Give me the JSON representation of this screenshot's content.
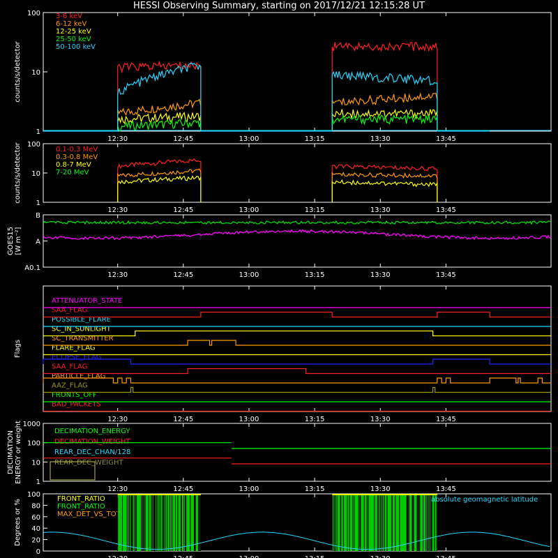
{
  "title": "HESSI Observing Summary, starting on 2017/12/21 12:15:28 UT",
  "colors": {
    "background": "#000000",
    "axes": "#ffffff"
  },
  "chart_data": [
    {
      "id": "hxr",
      "type": "line",
      "ylabel": "counts/s/detector",
      "yscale": "log",
      "ylim": [
        1,
        100
      ],
      "ytick_labels": [
        "1",
        "10",
        "100"
      ],
      "xlim_min": [
        -2,
        100
      ],
      "xtick_labels": [
        "12:30",
        "12:45",
        "13:00",
        "13:15",
        "13:30",
        "13:45"
      ],
      "series": [
        {
          "name": "3-6 keV",
          "color": "#ff2020",
          "segments": [
            {
              "x": [
                -2,
                0
              ],
              "y": [
                1,
                1
              ]
            },
            {
              "x": [
                15,
                34
              ],
              "y": [
                12,
                13
              ]
            },
            {
              "x": [
                64,
                88
              ],
              "y": [
                27,
                27
              ]
            }
          ]
        },
        {
          "name": "6-12 keV",
          "color": "#ff9a00",
          "segments": [
            {
              "x": [
                15,
                34
              ],
              "y": [
                2,
                3
              ]
            },
            {
              "x": [
                64,
                88
              ],
              "y": [
                3,
                4
              ]
            }
          ]
        },
        {
          "name": "12-25 keV",
          "color": "#ffff00",
          "segments": [
            {
              "x": [
                15,
                34
              ],
              "y": [
                1.6,
                1.8
              ]
            },
            {
              "x": [
                64,
                88
              ],
              "y": [
                2,
                2
              ]
            }
          ]
        },
        {
          "name": "25-50 keV",
          "color": "#00ff00",
          "segments": [
            {
              "x": [
                15,
                34
              ],
              "y": [
                1.2,
                1.4
              ]
            },
            {
              "x": [
                64,
                88
              ],
              "y": [
                1.6,
                1.6
              ]
            }
          ]
        },
        {
          "name": "50-100 keV",
          "color": "#20d8ff",
          "segments": [
            {
              "x": [
                -2,
                15
              ],
              "y": [
                1,
                1
              ]
            },
            {
              "x": [
                15,
                34
              ],
              "y": [
                4.5,
                13
              ]
            },
            {
              "x": [
                34,
                64
              ],
              "y": [
                1,
                1
              ]
            },
            {
              "x": [
                64,
                88
              ],
              "y": [
                9,
                7
              ]
            },
            {
              "x": [
                88,
                100
              ],
              "y": [
                1,
                1
              ]
            }
          ]
        }
      ]
    },
    {
      "id": "gamma",
      "type": "line",
      "ylabel": "counts/s/detector",
      "yscale": "log",
      "ylim": [
        1,
        100
      ],
      "ytick_labels": [
        "1",
        "10",
        "100"
      ],
      "xtick_labels": [
        "12:30",
        "12:45",
        "13:00",
        "13:15",
        "13:30",
        "13:45"
      ],
      "series": [
        {
          "name": "0.1-0.3 MeV",
          "color": "#ff2020",
          "segments": [
            {
              "x": [
                15,
                34
              ],
              "y": [
                17,
                28
              ]
            },
            {
              "x": [
                64,
                88
              ],
              "y": [
                17,
                14
              ]
            }
          ]
        },
        {
          "name": "0.3-0.8 MeV",
          "color": "#ff9a00",
          "segments": [
            {
              "x": [
                15,
                34
              ],
              "y": [
                8,
                12
              ]
            },
            {
              "x": [
                64,
                88
              ],
              "y": [
                9,
                8
              ]
            }
          ]
        },
        {
          "name": "0.8-7 MeV",
          "color": "#ffff00",
          "segments": [
            {
              "x": [
                15,
                34
              ],
              "y": [
                5,
                7
              ]
            },
            {
              "x": [
                64,
                88
              ],
              "y": [
                5,
                4
              ]
            }
          ]
        },
        {
          "name": "7-20 MeV",
          "color": "#00ff00",
          "segments": []
        }
      ]
    },
    {
      "id": "goes",
      "type": "line",
      "ylabel": "GOES15",
      "ylabel2": "[W m⁻²]",
      "ytick_labels": [
        "A0.1",
        "A",
        "B"
      ],
      "xtick_labels": [
        "12:30",
        "12:45",
        "13:00",
        "13:15",
        "13:30",
        "13:45"
      ],
      "series": [
        {
          "name": "",
          "color": "#00dd00",
          "level": 0.96
        },
        {
          "name": "",
          "color": "#ff00ff",
          "level": 0.62
        }
      ]
    },
    {
      "id": "flags",
      "type": "line",
      "ylabel": "Flags",
      "xtick_labels": [
        "12:30",
        "12:45",
        "13:00",
        "13:15",
        "13:30",
        "13:45"
      ],
      "series": [
        {
          "name": "ATTENUATOR_STATE",
          "color": "#ff00ff",
          "on": []
        },
        {
          "name": "SAA_FLAG",
          "color": "#ff2020",
          "on": [
            [
              34,
              64
            ],
            [
              88,
              100
            ]
          ]
        },
        {
          "name": "POSSIBLE_FLARE",
          "color": "#20d8ff",
          "on": []
        },
        {
          "name": "SC_IN_SUNLIGHT",
          "color": "#ffff00",
          "on": [
            [
              19,
              87
            ]
          ]
        },
        {
          "name": "SC_TRANSMITTER",
          "color": "#ff9a00",
          "on": [
            [
              31,
              36
            ],
            [
              36.5,
              42
            ]
          ]
        },
        {
          "name": "FLARE_FLAG",
          "color": "#ffff00",
          "on": []
        },
        {
          "name": "ECLIPSE_FLAG",
          "color": "#2020ff",
          "on": [
            [
              -2,
              18
            ],
            [
              87,
              100
            ]
          ]
        },
        {
          "name": "SAA_FLAG",
          "color": "#ff2020",
          "on": [
            [
              31,
              58
            ]
          ]
        },
        {
          "name": "PARTICLE_FLAG",
          "color": "#ff9a00",
          "on": [
            [
              -2,
              14
            ],
            [
              15,
              16
            ],
            [
              17,
              18
            ],
            [
              88,
              89
            ],
            [
              90,
              91
            ],
            [
              100,
              106
            ],
            [
              106.5,
              107
            ],
            [
              111,
              112
            ]
          ]
        },
        {
          "name": "AAZ_FLAG",
          "color": "#999900",
          "on": [
            [
              18,
              18.5
            ],
            [
              87,
              87.5
            ]
          ]
        },
        {
          "name": "FRONTS_OFF",
          "color": "#00ff00",
          "on": []
        },
        {
          "name": "BAD_PACKETS",
          "color": "#ff2020",
          "on": []
        }
      ]
    },
    {
      "id": "decimation",
      "type": "line",
      "ylabel": "DECIMATION",
      "ylabel2": "ENERGY or weight",
      "yscale": "log",
      "ylim": [
        1,
        1000
      ],
      "ytick_labels": [
        "1",
        "10",
        "100",
        "1000"
      ],
      "xtick_labels": [
        "12:30",
        "12:45",
        "13:00",
        "13:15",
        "13:30",
        "13:45"
      ],
      "series": [
        {
          "name": "DECIMATION_ENERGY",
          "color": "#00ff00",
          "segments": [
            {
              "x": [
                -2,
                41
              ],
              "y": [
                100,
                100
              ]
            },
            {
              "x": [
                41,
                114
              ],
              "y": [
                50,
                50
              ]
            }
          ]
        },
        {
          "name": "DECIMATION_WEIGHT",
          "color": "#ff2020",
          "segments": [
            {
              "x": [
                -2,
                41
              ],
              "y": [
                16,
                16
              ]
            },
            {
              "x": [
                41,
                114
              ],
              "y": [
                8,
                8
              ]
            }
          ]
        },
        {
          "name": "REAR_DEC_CHAN/128",
          "color": "#20d8ff",
          "segments": []
        },
        {
          "name": "REAR_DEC_WEIGHT",
          "color": "#888833",
          "segments": []
        }
      ]
    },
    {
      "id": "ratio",
      "type": "line",
      "ylabel": "Degrees or %",
      "ylim": [
        0,
        100
      ],
      "ytick_labels": [
        "0",
        "20",
        "40",
        "60",
        "80",
        "100"
      ],
      "xtick_labels": [
        "12:30",
        "12:45",
        "13:00",
        "13:15",
        "13:30",
        "13:45"
      ],
      "annotation": "absolute geomagnetic latitude",
      "series": [
        {
          "name": "FRONT_RATIO",
          "color": "#ffff00",
          "segments": []
        },
        {
          "name": "FRONT_RATIO",
          "color": "#00ff00",
          "segments": [
            {
              "x": [
                15,
                34
              ],
              "y": [
                100,
                100
              ]
            },
            {
              "x": [
                64,
                88
              ],
              "y": [
                100,
                100
              ]
            }
          ]
        },
        {
          "name": "MAX_DET_VS_TOT",
          "color": "#ff9a00",
          "segments": []
        },
        {
          "name": "absolute geomagnetic latitude",
          "color": "#20d8ff",
          "segments": []
        }
      ]
    }
  ]
}
